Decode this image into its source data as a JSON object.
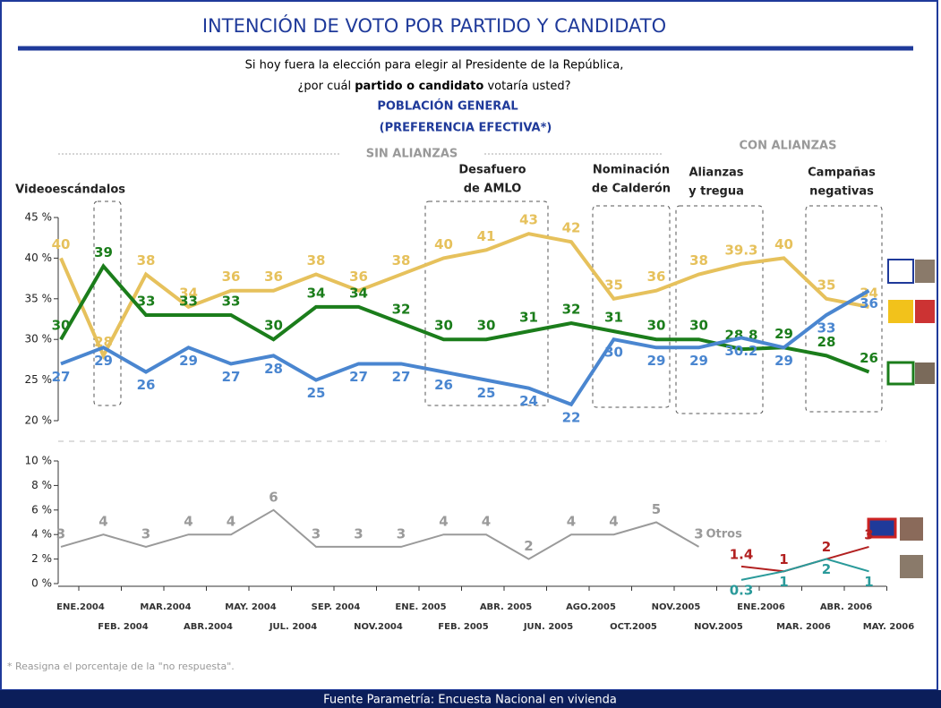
{
  "header": {
    "title": "INTENCIÓN DE VOTO POR PARTIDO Y CANDIDATO",
    "question": [
      "Si hoy fuera la elección para elegir al Presidente de la República,",
      "¿por cuál ",
      "partido o candidato",
      " votaría usted?"
    ],
    "population": "POBLACIÓN GENERAL",
    "note": "(PREFERENCIA EFECTIVA*)"
  },
  "chart_data": [
    {
      "type": "line",
      "ylim": [
        20,
        45
      ],
      "yticks": [
        {
          "value": 20,
          "label": "20 %"
        },
        {
          "value": 25,
          "label": "25 %"
        },
        {
          "value": 30,
          "label": "30 %"
        },
        {
          "value": 35,
          "label": "35 %"
        },
        {
          "value": 40,
          "label": "40 %"
        },
        {
          "value": 45,
          "label": "45 %"
        }
      ],
      "periods": [
        "SIN ALIANZAS",
        "CON ALIANZAS"
      ],
      "annotations": [
        [
          "Videoescándalos"
        ],
        [
          "Desafuero",
          "de AMLO"
        ],
        [
          "Nominación",
          "de Calderón"
        ],
        [
          "Alianzas",
          "y tregua"
        ],
        [
          "Campañas",
          "negativas"
        ]
      ],
      "series": [
        {
          "color": "#e6c15c",
          "values": [
            40,
            28,
            38,
            34,
            36,
            36,
            38,
            36,
            38,
            40,
            41,
            43,
            42,
            35,
            36,
            38,
            39.3,
            40,
            35,
            34
          ]
        },
        {
          "color": "#1b7d1b",
          "values": [
            30,
            39,
            33,
            33,
            33,
            30,
            34,
            34,
            32,
            30,
            30,
            31,
            32,
            31,
            30,
            30,
            28.8,
            29,
            28,
            26
          ]
        },
        {
          "color": "#4a86d0",
          "values": [
            27,
            29,
            26,
            29,
            27,
            28,
            25,
            27,
            27,
            26,
            25,
            24,
            22,
            30,
            29,
            29,
            30.2,
            29,
            33,
            36
          ]
        }
      ]
    },
    {
      "type": "line",
      "ylim": [
        0,
        10
      ],
      "yticks": [
        {
          "value": 0,
          "label": "0 %"
        },
        {
          "value": 2,
          "label": "2 %"
        },
        {
          "value": 4,
          "label": "4 %"
        },
        {
          "value": 6,
          "label": "6 %"
        },
        {
          "value": 8,
          "label": "8 %"
        },
        {
          "value": 10,
          "label": "10 %"
        }
      ],
      "categories": [
        "ENE.2004",
        "FEB. 2004",
        "MAR.2004",
        "ABR.2004",
        "MAY. 2004",
        "JUL. 2004",
        "SEP. 2004",
        "NOV.2004",
        "ENE. 2005",
        "FEB. 2005",
        "ABR. 2005",
        "JUN. 2005",
        "AGO.2005",
        "OCT.2005",
        "NOV.2005",
        "NOV.2005",
        "ENE.2006",
        "MAR. 2006",
        "ABR. 2006",
        "MAY. 2006"
      ],
      "series": [
        {
          "name": "Otros",
          "color": "#9a9a9a",
          "values": [
            3,
            4,
            3,
            4,
            4,
            6,
            3,
            3,
            3,
            4,
            4,
            2,
            4,
            4,
            5,
            3,
            null,
            null,
            null,
            null
          ]
        },
        {
          "color": "#b22020",
          "values": [
            null,
            null,
            null,
            null,
            null,
            null,
            null,
            null,
            null,
            null,
            null,
            null,
            null,
            null,
            null,
            null,
            1.4,
            1,
            2,
            3
          ]
        },
        {
          "color": "#2a9a9a",
          "values": [
            null,
            null,
            null,
            null,
            null,
            null,
            null,
            null,
            null,
            null,
            null,
            null,
            null,
            null,
            null,
            null,
            0.3,
            1,
            2,
            1
          ]
        }
      ]
    }
  ],
  "footnote": "* Reasigna el porcentaje de la \"no respuesta\".",
  "source": "Fuente Parametría: Encuesta Nacional en vivienda"
}
